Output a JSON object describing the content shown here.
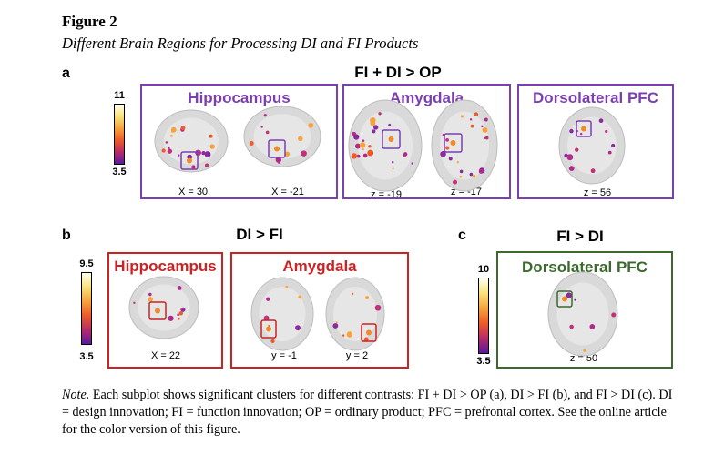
{
  "figure": {
    "title": "Figure 2",
    "subtitle": "Different Brain Regions for Processing DI and FI Products"
  },
  "colors": {
    "purple": "#7b3fb0",
    "red": "#cc2222",
    "green": "#3c6a2e"
  },
  "panel_a": {
    "letter": "a",
    "contrast": "FI + DI > OP",
    "colorbar": {
      "max": "11",
      "min": "3.5"
    },
    "boxes": [
      {
        "title": "Hippocampus",
        "coords": [
          "X = 30",
          "X = -21"
        ]
      },
      {
        "title": "Amygdala",
        "coords": [
          "z = -19",
          "z = -17"
        ]
      },
      {
        "title": "Dorsolateral PFC",
        "coords": [
          "z = 56"
        ]
      }
    ]
  },
  "panel_b": {
    "letter": "b",
    "contrast": "DI > FI",
    "colorbar": {
      "max": "9.5",
      "min": "3.5"
    },
    "boxes": [
      {
        "title": "Hippocampus",
        "coords": [
          "X = 22"
        ]
      },
      {
        "title": "Amygdala",
        "coords": [
          "y = -1",
          "y = 2"
        ]
      }
    ]
  },
  "panel_c": {
    "letter": "c",
    "contrast": "FI > DI",
    "colorbar": {
      "max": "10",
      "min": "3.5"
    },
    "boxes": [
      {
        "title": "Dorsolateral PFC",
        "coords": [
          "z = 50"
        ]
      }
    ]
  },
  "note": {
    "label": "Note.",
    "text": " Each subplot shows significant clusters for different contrasts: FI + DI > OP (a), DI > FI (b), and FI > DI (c). DI = design innovation; FI = function innovation; OP = ordinary product; PFC = prefrontal cortex. See the online article for the color version of this figure."
  }
}
